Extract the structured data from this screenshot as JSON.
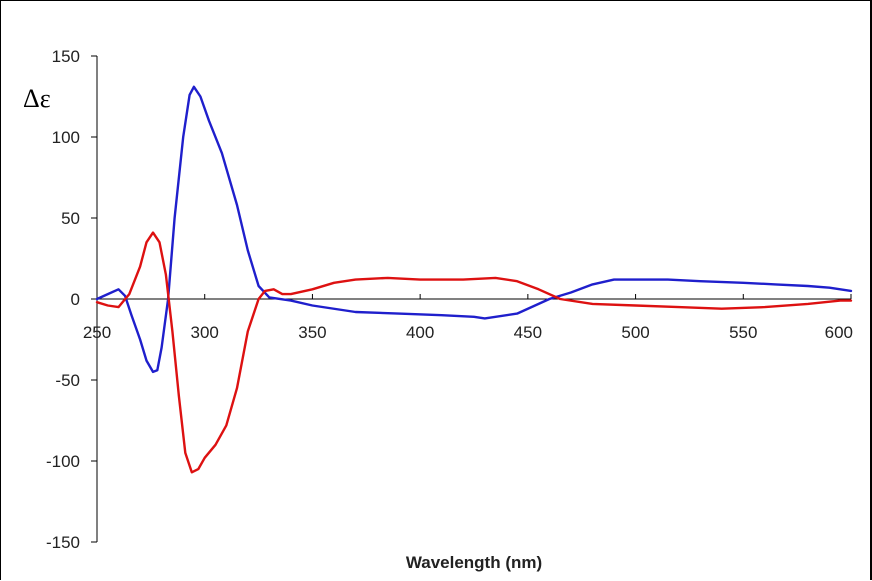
{
  "chart_data": {
    "type": "line",
    "title": "",
    "xlabel": "Wavelength (nm)",
    "ylabel": "Δε",
    "xlim": [
      250,
      600
    ],
    "ylim": [
      -150,
      150
    ],
    "xticks": [
      "250",
      "300",
      "350",
      "400",
      "450",
      "500",
      "550",
      "600"
    ],
    "yticks": [
      "150",
      "100",
      "50",
      "0",
      "-50",
      "-100",
      "-150"
    ],
    "grid": false,
    "legend": "none",
    "series": [
      {
        "color": "#1f1fcc",
        "points": [
          [
            250,
            0
          ],
          [
            255,
            3
          ],
          [
            260,
            6
          ],
          [
            263,
            2
          ],
          [
            266,
            -10
          ],
          [
            270,
            -25
          ],
          [
            273,
            -38
          ],
          [
            276,
            -45
          ],
          [
            278,
            -44
          ],
          [
            280,
            -30
          ],
          [
            283,
            0
          ],
          [
            286,
            50
          ],
          [
            290,
            100
          ],
          [
            293,
            126
          ],
          [
            295,
            131
          ],
          [
            298,
            125
          ],
          [
            302,
            110
          ],
          [
            308,
            90
          ],
          [
            315,
            58
          ],
          [
            320,
            30
          ],
          [
            325,
            8
          ],
          [
            330,
            1
          ],
          [
            340,
            -1
          ],
          [
            350,
            -4
          ],
          [
            370,
            -8
          ],
          [
            390,
            -9
          ],
          [
            410,
            -10
          ],
          [
            425,
            -11
          ],
          [
            430,
            -12
          ],
          [
            445,
            -9
          ],
          [
            460,
            0
          ],
          [
            470,
            4
          ],
          [
            480,
            9
          ],
          [
            490,
            12
          ],
          [
            500,
            12
          ],
          [
            515,
            12
          ],
          [
            530,
            11
          ],
          [
            550,
            10
          ],
          [
            565,
            9
          ],
          [
            580,
            8
          ],
          [
            590,
            7
          ],
          [
            600,
            5
          ]
        ]
      },
      {
        "color": "#dd1111",
        "points": [
          [
            250,
            -2
          ],
          [
            255,
            -4
          ],
          [
            260,
            -5
          ],
          [
            265,
            3
          ],
          [
            270,
            20
          ],
          [
            273,
            35
          ],
          [
            276,
            41
          ],
          [
            279,
            35
          ],
          [
            282,
            15
          ],
          [
            285,
            -20
          ],
          [
            288,
            -60
          ],
          [
            291,
            -95
          ],
          [
            294,
            -107
          ],
          [
            297,
            -105
          ],
          [
            300,
            -98
          ],
          [
            305,
            -90
          ],
          [
            310,
            -78
          ],
          [
            315,
            -55
          ],
          [
            320,
            -20
          ],
          [
            325,
            0
          ],
          [
            328,
            5
          ],
          [
            332,
            6
          ],
          [
            336,
            3
          ],
          [
            340,
            3
          ],
          [
            350,
            6
          ],
          [
            360,
            10
          ],
          [
            370,
            12
          ],
          [
            385,
            13
          ],
          [
            400,
            12
          ],
          [
            420,
            12
          ],
          [
            435,
            13
          ],
          [
            445,
            11
          ],
          [
            455,
            6
          ],
          [
            465,
            0
          ],
          [
            480,
            -3
          ],
          [
            500,
            -4
          ],
          [
            520,
            -5
          ],
          [
            540,
            -6
          ],
          [
            560,
            -5
          ],
          [
            580,
            -3
          ],
          [
            595,
            -1
          ],
          [
            600,
            -1
          ]
        ]
      }
    ]
  }
}
